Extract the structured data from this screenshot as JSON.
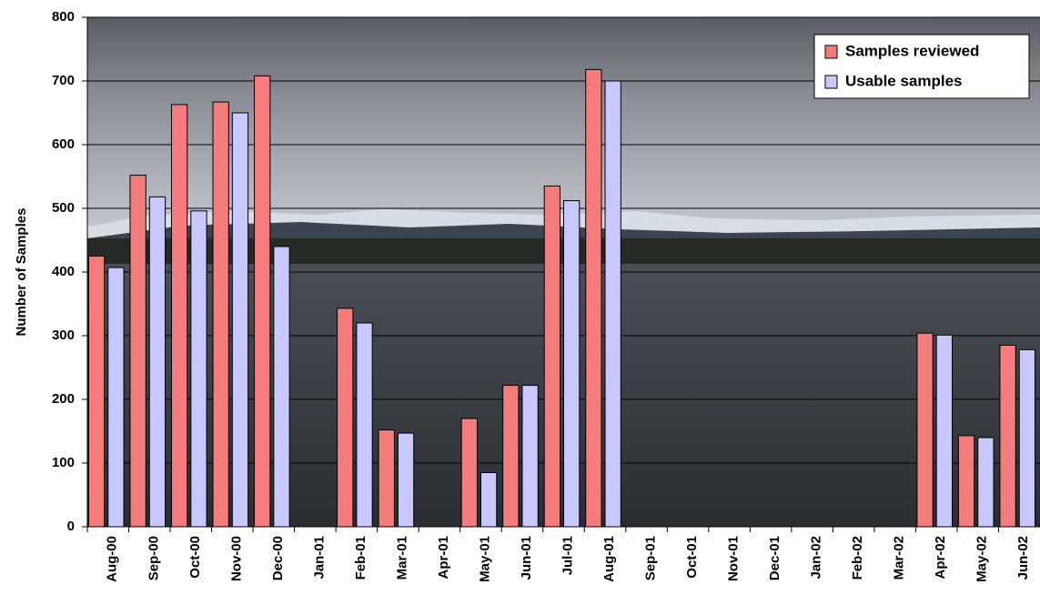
{
  "chart_data": {
    "type": "bar",
    "y_label": "Number of Samples",
    "categories": [
      "Aug-00",
      "Sep-00",
      "Oct-00",
      "Nov-00",
      "Dec-00",
      "Jan-01",
      "Feb-01",
      "Mar-01",
      "Apr-01",
      "May-01",
      "Jun-01",
      "Jul-01",
      "Aug-01",
      "Sep-01",
      "Oct-01",
      "Nov-01",
      "Dec-01",
      "Jan-02",
      "Feb-02",
      "Mar-02",
      "Apr-02",
      "May-02",
      "Jun-02"
    ],
    "series": [
      {
        "name": "Samples reviewed",
        "color": "#f47c7c",
        "values": [
          425,
          552,
          663,
          667,
          708,
          null,
          343,
          152,
          null,
          170,
          222,
          535,
          718,
          null,
          null,
          null,
          null,
          null,
          null,
          null,
          304,
          143,
          285
        ]
      },
      {
        "name": "Usable samples",
        "color": "#c8c8ff",
        "values": [
          407,
          518,
          496,
          650,
          440,
          null,
          320,
          147,
          null,
          85,
          222,
          512,
          700,
          null,
          null,
          null,
          null,
          null,
          null,
          null,
          301,
          140,
          278
        ]
      }
    ],
    "ylim": [
      0,
      800
    ],
    "yticks": [
      0,
      100,
      200,
      300,
      400,
      500,
      600,
      700,
      800
    ],
    "grid": true,
    "legend": "top-right"
  }
}
